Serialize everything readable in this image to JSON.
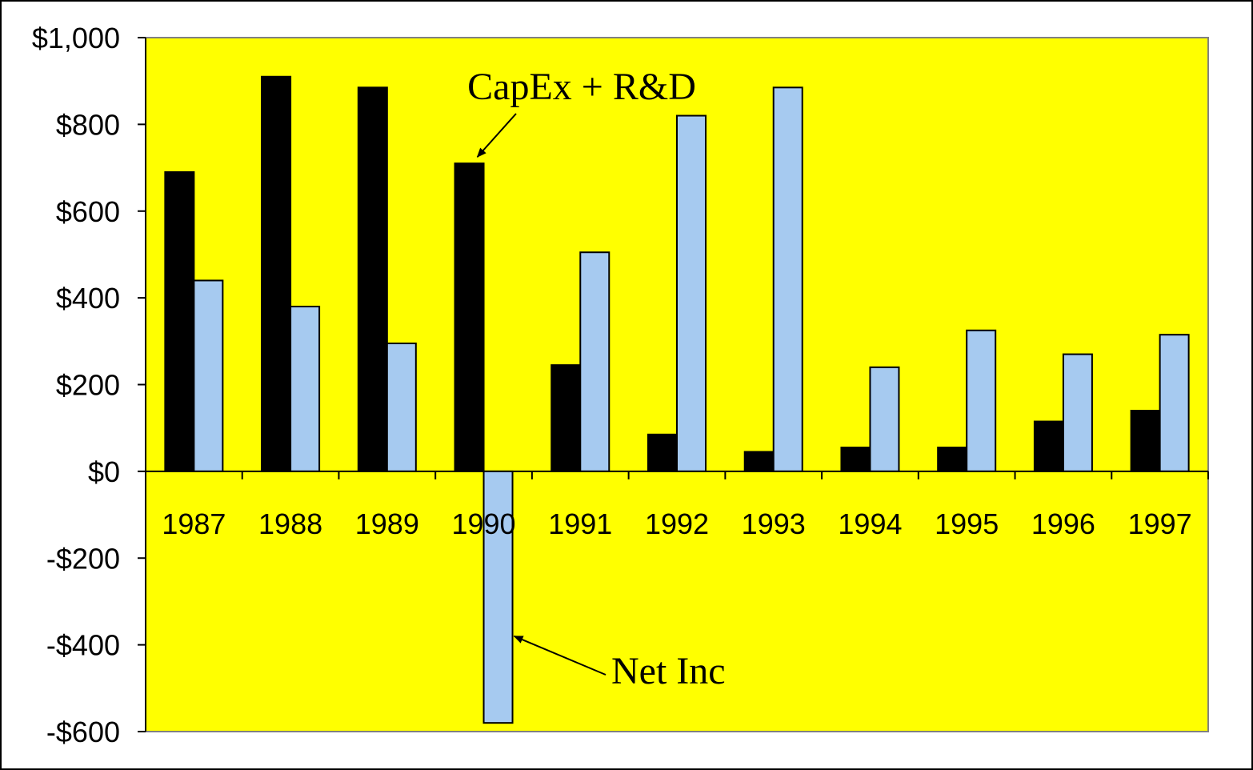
{
  "chart_data": {
    "type": "bar",
    "categories": [
      "1987",
      "1988",
      "1989",
      "1990",
      "1991",
      "1992",
      "1993",
      "1994",
      "1995",
      "1996",
      "1997"
    ],
    "series": [
      {
        "name": "CapEx + R&D",
        "color": "#000000",
        "values": [
          690,
          910,
          885,
          710,
          245,
          85,
          45,
          55,
          55,
          115,
          140
        ]
      },
      {
        "name": "Net Inc",
        "color": "#a6caf0",
        "values": [
          440,
          380,
          295,
          -580,
          505,
          820,
          885,
          240,
          325,
          270,
          315
        ]
      }
    ],
    "ylim": [
      -600,
      1000
    ],
    "y_ticks": [
      1000,
      800,
      600,
      400,
      200,
      0,
      -200,
      -400,
      -600
    ],
    "y_tick_labels": [
      "$1,000",
      "$800",
      "$600",
      "$400",
      "$200",
      "$0",
      "-$200",
      "-$400",
      "-$600"
    ],
    "plot_background": "#ffff00",
    "grid": false,
    "legend": "none",
    "annotations": [
      {
        "text": "CapEx + R&D",
        "points_to": {
          "series": 0,
          "category": "1990"
        }
      },
      {
        "text": "Net Inc",
        "points_to": {
          "series": 1,
          "category": "1990"
        }
      }
    ]
  }
}
